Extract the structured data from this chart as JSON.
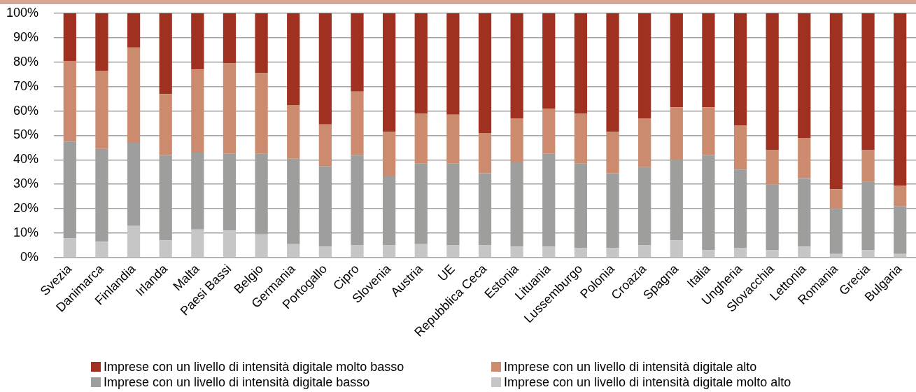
{
  "chart_data": {
    "type": "bar",
    "stacked": true,
    "categories": [
      "Svezia",
      "Danimarca",
      "Finlandia",
      "Irlanda",
      "Malta",
      "Paesi Bassi",
      "Belgio",
      "Germania",
      "Portogallo",
      "Cipro",
      "Slovenia",
      "Austria",
      "UE",
      "Repubblica Ceca",
      "Estonia",
      "Lituania",
      "Lussemburgo",
      "Polonia",
      "Croazia",
      "Spagna",
      "Italia",
      "Ungheria",
      "Slovacchia",
      "Lettonia",
      "Romania",
      "Grecia",
      "Bulgaria"
    ],
    "series": [
      {
        "name": "Imprese con un livello di intensità digitale molto alto",
        "color": "#c6c6c6",
        "values": [
          8,
          6.5,
          13,
          7,
          11.5,
          11,
          9.5,
          5.5,
          4.5,
          5,
          5,
          5.5,
          5,
          5,
          4.5,
          4.5,
          4,
          4,
          5,
          7,
          3,
          4,
          3,
          4.5,
          1.5,
          3,
          1.5
        ]
      },
      {
        "name": "Imprese con un livello di intensità digitale basso",
        "color": "#9e9e9c",
        "values": [
          39.5,
          38,
          34,
          35,
          31.5,
          31.5,
          33,
          35,
          33,
          37,
          28.5,
          33,
          33.5,
          29.5,
          34.5,
          38,
          34.5,
          30.5,
          32,
          33,
          39,
          32,
          27,
          28,
          18.5,
          28,
          19.5
        ]
      },
      {
        "name": "Imprese con un livello di intensità digitale alto",
        "color": "#cc8a6e",
        "values": [
          33,
          32,
          39,
          25,
          34,
          37,
          33,
          22,
          17,
          26,
          18,
          20.5,
          20,
          16.5,
          18,
          18.5,
          20.5,
          17,
          20,
          21.5,
          19.5,
          18,
          14,
          16.5,
          8,
          13,
          8.5
        ]
      },
      {
        "name": "Imprese con un livello di intensità digitale molto basso",
        "color": "#a0301f",
        "values": [
          19.5,
          23.5,
          14,
          33,
          23,
          20.5,
          24.5,
          37.5,
          45.5,
          32,
          48.5,
          41,
          41.5,
          49,
          43,
          39,
          41,
          48.5,
          43,
          38.5,
          38.5,
          46,
          56,
          51,
          72,
          56,
          70.5
        ]
      }
    ],
    "ylim": [
      0,
      100
    ],
    "yticks": [
      {
        "value": 0,
        "label": "0%"
      },
      {
        "value": 10,
        "label": "10%"
      },
      {
        "value": 20,
        "label": "20%"
      },
      {
        "value": 30,
        "label": "30%"
      },
      {
        "value": 40,
        "label": "40%"
      },
      {
        "value": 50,
        "label": "50%"
      },
      {
        "value": 60,
        "label": "60%"
      },
      {
        "value": 70,
        "label": "70%"
      },
      {
        "value": 80,
        "label": "80%"
      },
      {
        "value": 90,
        "label": "90%"
      },
      {
        "value": 100,
        "label": "100%"
      }
    ],
    "grid": "y",
    "legend": "bottom"
  }
}
